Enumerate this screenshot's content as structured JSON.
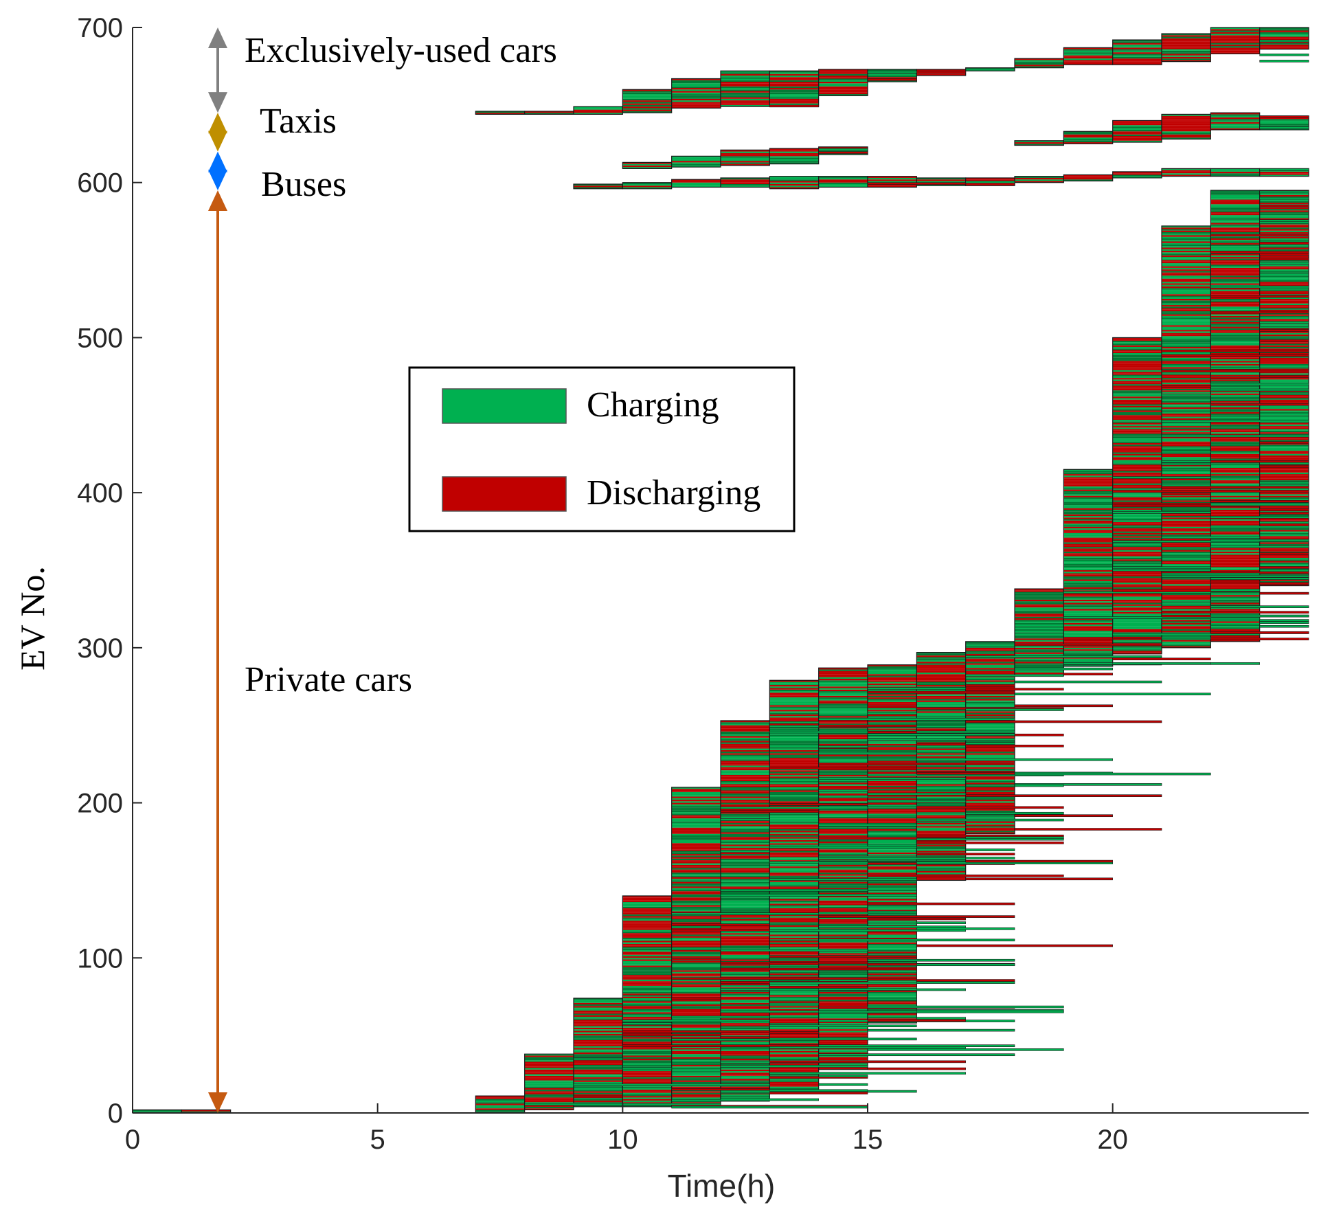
{
  "chart_data": {
    "type": "gantt-like block chart",
    "title": "",
    "xlabel": "Time(h)",
    "ylabel": "EV No.",
    "xlim": [
      0,
      24
    ],
    "ylim": [
      0,
      700
    ],
    "xticks": [
      0,
      5,
      10,
      15,
      20
    ],
    "yticks": [
      0,
      100,
      200,
      300,
      400,
      500,
      600,
      700
    ],
    "grid": false,
    "legend": {
      "position": "center",
      "entries": [
        {
          "label": "Charging",
          "color": "#00b050"
        },
        {
          "label": "Discharging",
          "color": "#c00000"
        }
      ]
    },
    "vehicle_groups": [
      {
        "label": "Exclusively-used cars",
        "ev_range": [
          645,
          700
        ],
        "color": "#808080"
      },
      {
        "label": "Taxis",
        "ev_range": [
          620,
          645
        ],
        "color": "#bf8f00"
      },
      {
        "label": "Buses",
        "ev_range": [
          595,
          620
        ],
        "color": "#0070ff"
      },
      {
        "label": "Private cars",
        "ev_range": [
          0,
          595
        ],
        "color": "#c55a11"
      }
    ],
    "cumulative_ev_count_by_hour": {
      "private_cars": {
        "hours": [
          0,
          1,
          7,
          8,
          9,
          10,
          11,
          12,
          13,
          14,
          15,
          16,
          17,
          18,
          19,
          20,
          21,
          22,
          23
        ],
        "max_ev_no": [
          2,
          2,
          11,
          38,
          74,
          140,
          210,
          253,
          279,
          287,
          289,
          297,
          304,
          338,
          415,
          500,
          572,
          595,
          595
        ]
      },
      "buses": {
        "hours": [
          9,
          10,
          11,
          12,
          13,
          14,
          15,
          16,
          17,
          18,
          19,
          20,
          21,
          22,
          23
        ],
        "ev_no_range": [
          [
            596,
            599
          ],
          [
            596,
            600
          ],
          [
            597,
            602
          ],
          [
            597,
            603
          ],
          [
            596,
            604
          ],
          [
            597,
            604
          ],
          [
            597,
            604
          ],
          [
            598,
            603
          ],
          [
            598,
            603
          ],
          [
            600,
            604
          ],
          [
            601,
            605
          ],
          [
            603,
            607
          ],
          [
            604,
            609
          ],
          [
            604,
            609
          ],
          [
            604,
            609
          ]
        ]
      },
      "taxis": {
        "hours": [
          10,
          11,
          12,
          13,
          14,
          18,
          19,
          20,
          21,
          22,
          23
        ],
        "ev_no_range": [
          [
            609,
            613
          ],
          [
            610,
            617
          ],
          [
            611,
            621
          ],
          [
            612,
            622
          ],
          [
            618,
            623
          ],
          [
            624,
            627
          ],
          [
            625,
            633
          ],
          [
            626,
            640
          ],
          [
            628,
            644
          ],
          [
            634,
            645
          ],
          [
            634,
            643
          ]
        ]
      },
      "exclusively_used_cars": {
        "hours": [
          7,
          8,
          9,
          10,
          11,
          12,
          13,
          14,
          15,
          16,
          17,
          18,
          19,
          20,
          21,
          22,
          23
        ],
        "ev_no_range": [
          [
            644,
            646
          ],
          [
            644,
            646
          ],
          [
            644,
            649
          ],
          [
            645,
            660
          ],
          [
            648,
            667
          ],
          [
            649,
            672
          ],
          [
            649,
            672
          ],
          [
            656,
            673
          ],
          [
            665,
            673
          ],
          [
            669,
            673
          ],
          [
            672,
            674
          ],
          [
            674,
            680
          ],
          [
            676,
            687
          ],
          [
            676,
            692
          ],
          [
            678,
            696
          ],
          [
            683,
            700
          ],
          [
            686,
            700
          ]
        ]
      }
    }
  }
}
